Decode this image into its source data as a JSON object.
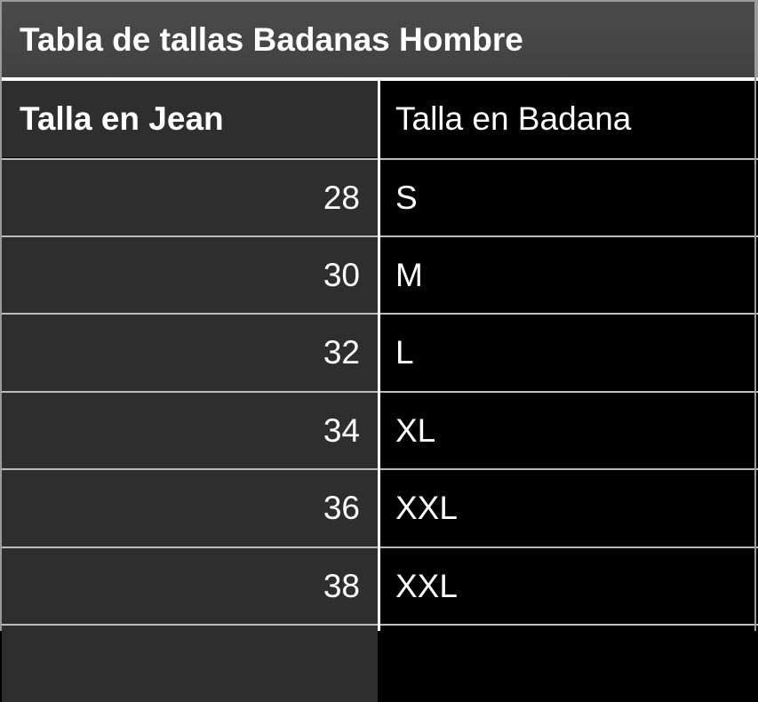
{
  "table": {
    "title": "Tabla de tallas Badanas Hombre",
    "headers": [
      "Talla en Jean",
      "Talla en Badana"
    ],
    "rows": [
      {
        "jean": "28",
        "badana": "S"
      },
      {
        "jean": "30",
        "badana": "M"
      },
      {
        "jean": "32",
        "badana": "L"
      },
      {
        "jean": "34",
        "badana": "XL"
      },
      {
        "jean": "36",
        "badana": "XXL"
      },
      {
        "jean": "38",
        "badana": "XXL"
      }
    ]
  }
}
